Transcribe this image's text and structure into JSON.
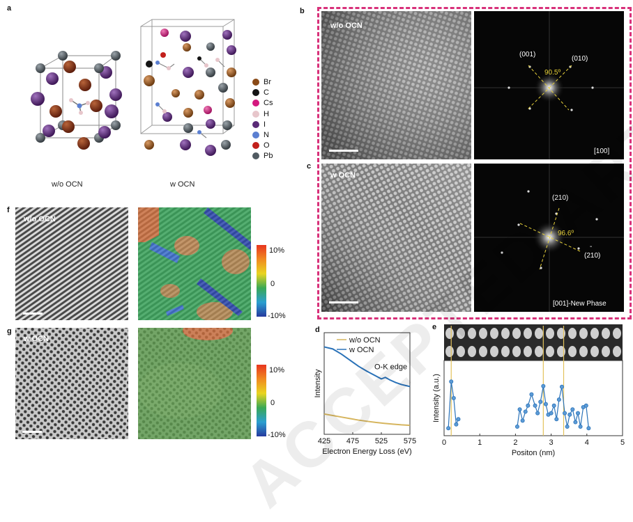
{
  "panels": {
    "a": "a",
    "b": "b",
    "c": "c",
    "d": "d",
    "e": "e",
    "f": "f",
    "g": "g"
  },
  "crystal": {
    "left_caption": "w/o OCN",
    "right_caption": "w OCN",
    "legend": [
      {
        "label": "Br",
        "color": "#8a4a17"
      },
      {
        "label": "C",
        "color": "#151515"
      },
      {
        "label": "Cs",
        "color": "#d4197f"
      },
      {
        "label": "H",
        "color": "#e7c6cb"
      },
      {
        "label": "I",
        "color": "#5a2a77"
      },
      {
        "label": "N",
        "color": "#5b7fd1"
      },
      {
        "label": "O",
        "color": "#c2201c"
      },
      {
        "label": "Pb",
        "color": "#505a61"
      }
    ]
  },
  "tem": {
    "b_label": "w/o OCN",
    "c_label": "w OCN",
    "b_fft": {
      "spot1": "(001)",
      "spot2": "(010)",
      "angle": "90.5º",
      "zone": "[100]"
    },
    "c_fft": {
      "spot1": "(210)",
      "spot2_bar": "-",
      "spot2": "(210)",
      "angle": "96.6º",
      "zone": "[001]-New Phase"
    }
  },
  "strain": {
    "f_label": "w/o OCN",
    "g_label": "w OCN",
    "colorbar_ticks": [
      "10%",
      "0",
      "-10%"
    ]
  },
  "chart_data": [
    {
      "panel": "d",
      "type": "line",
      "xlabel": "Electron Energy Loss (eV)",
      "ylabel": "Intensity",
      "xlim": [
        425,
        575
      ],
      "xticks": [
        "425",
        "475",
        "525",
        "575"
      ],
      "annotation": "O-K edge",
      "legend_placement": "top",
      "series": [
        {
          "name": "w/o OCN",
          "color": "#d6b55e",
          "x": [
            425,
            440,
            455,
            470,
            485,
            500,
            515,
            530,
            545,
            560,
            575
          ],
          "y": [
            0.2,
            0.185,
            0.17,
            0.155,
            0.14,
            0.128,
            0.117,
            0.108,
            0.1,
            0.093,
            0.088
          ]
        },
        {
          "name": "w OCN",
          "color": "#2a72b8",
          "x": [
            425,
            440,
            455,
            470,
            485,
            500,
            515,
            525,
            532,
            540,
            550,
            560,
            575
          ],
          "y": [
            0.86,
            0.84,
            0.79,
            0.73,
            0.67,
            0.62,
            0.575,
            0.545,
            0.56,
            0.535,
            0.51,
            0.49,
            0.47
          ]
        }
      ]
    },
    {
      "panel": "e",
      "type": "line",
      "xlabel": "Positon (nm)",
      "ylabel": "Intensity (a.u.)",
      "xlim": [
        0,
        5
      ],
      "xticks": [
        "0",
        "1",
        "2",
        "3",
        "4",
        "5"
      ],
      "series": [
        {
          "name": "",
          "color": "#2a72b8",
          "x": [
            0.12,
            0.2,
            0.27,
            0.34,
            0.4,
            2.05,
            2.12,
            2.2,
            2.28,
            2.35,
            2.45,
            2.55,
            2.62,
            2.7,
            2.78,
            2.85,
            2.92,
            3.0,
            3.08,
            3.15,
            3.22,
            3.3,
            3.38,
            3.45,
            3.52,
            3.6,
            3.68,
            3.75,
            3.82,
            3.9,
            3.98,
            4.05
          ],
          "y": [
            0.1,
            0.72,
            0.5,
            0.15,
            0.22,
            0.12,
            0.35,
            0.2,
            0.32,
            0.4,
            0.55,
            0.4,
            0.3,
            0.45,
            0.66,
            0.42,
            0.28,
            0.3,
            0.4,
            0.22,
            0.48,
            0.65,
            0.3,
            0.12,
            0.28,
            0.35,
            0.18,
            0.3,
            0.12,
            0.38,
            0.4,
            0.1
          ]
        }
      ],
      "markers": [
        0.2,
        2.78,
        3.35
      ]
    }
  ]
}
